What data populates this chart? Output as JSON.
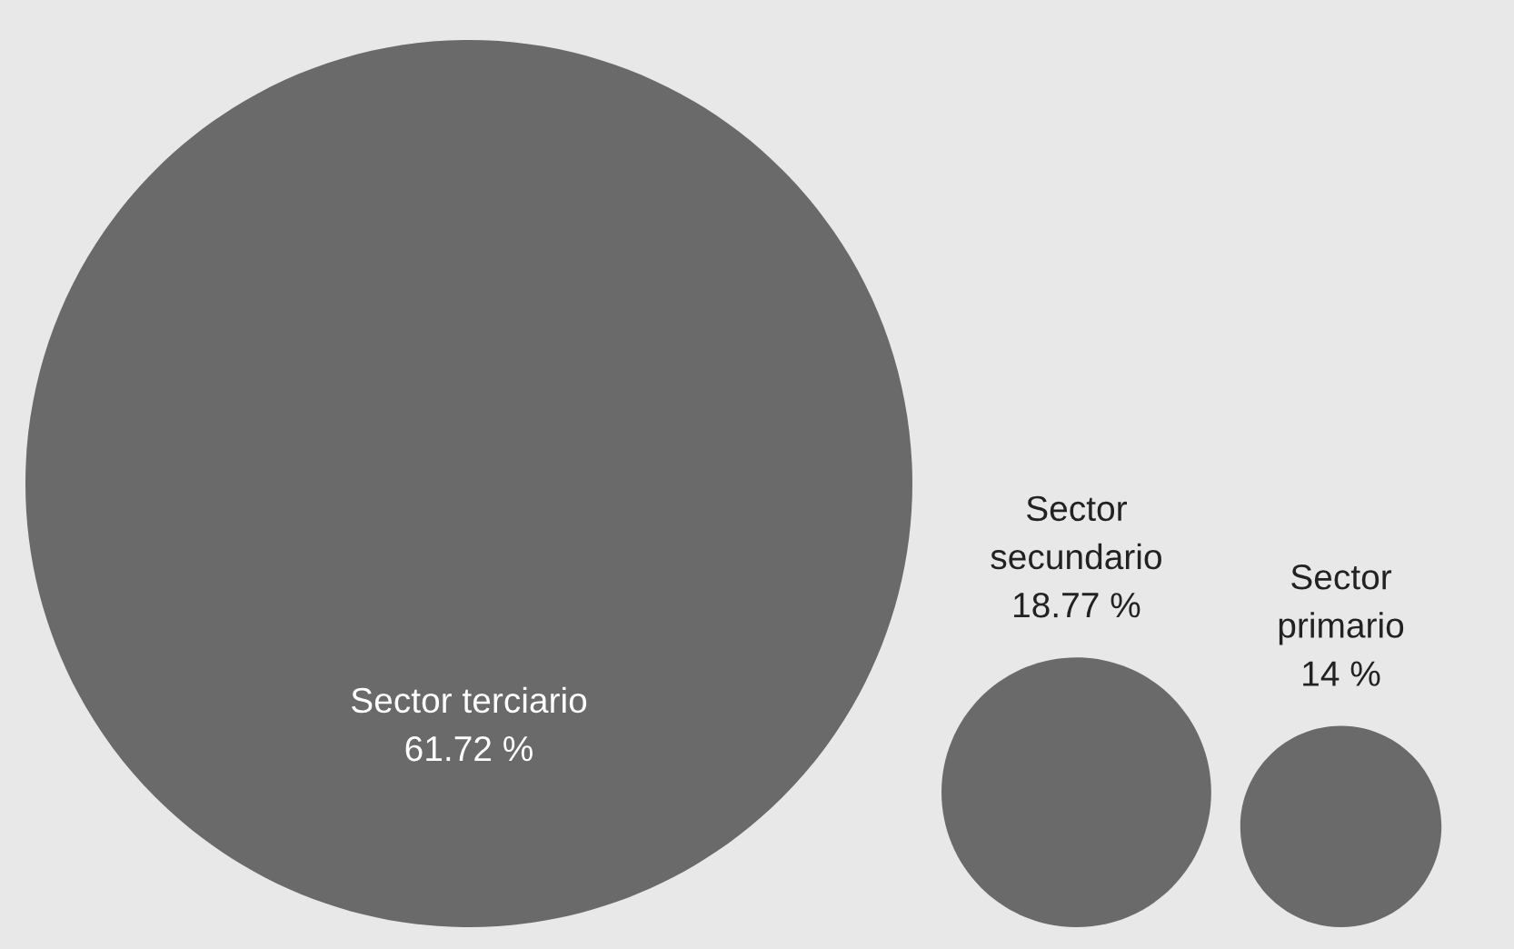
{
  "chart_data": {
    "type": "other",
    "categories": [
      "Sector terciario",
      "Sector secundario",
      "Sector primario"
    ],
    "values": [
      61.72,
      18.77,
      14
    ],
    "colors": [
      "#6a6a6a",
      "#6a6a6a",
      "#6a6a6a"
    ],
    "value_labels": [
      "61.72 %",
      "18.77 %",
      "14 %"
    ]
  }
}
